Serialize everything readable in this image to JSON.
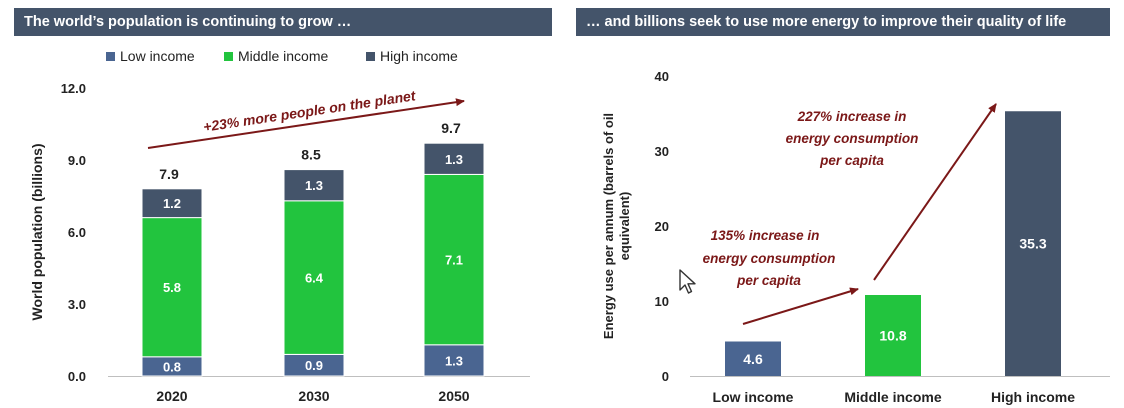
{
  "colors": {
    "low": "#4a6591",
    "middle": "#22c43e",
    "high": "#44546a",
    "annotation": "#7b1818",
    "header_bg": "#44546a"
  },
  "left": {
    "header": "The world’s population is continuing to grow …",
    "chart_data": {
      "type": "bar",
      "stacked": true,
      "categories": [
        "2020",
        "2030",
        "2050"
      ],
      "series": [
        {
          "name": "Low income",
          "values": [
            0.8,
            0.9,
            1.3
          ]
        },
        {
          "name": "Middle income",
          "values": [
            5.8,
            6.4,
            7.1
          ]
        },
        {
          "name": "High income",
          "values": [
            1.2,
            1.3,
            1.3
          ]
        }
      ],
      "totals": [
        "7.9",
        "8.5",
        "9.7"
      ],
      "segment_labels": [
        [
          "0.8",
          "5.8",
          "1.2"
        ],
        [
          "0.9",
          "6.4",
          "1.3"
        ],
        [
          "1.3",
          "7.1",
          "1.3"
        ]
      ],
      "ylabel": "World population (billions)",
      "ylim": [
        0,
        12
      ],
      "yticks": [
        "0.0",
        "3.0",
        "6.0",
        "9.0",
        "12.0"
      ],
      "legend_position": "top",
      "grid": false,
      "annotation": "+23% more people on the planet"
    }
  },
  "right": {
    "header": "… and billions seek to use more energy to improve their quality of life",
    "chart_data": {
      "type": "bar",
      "categories": [
        "Low income",
        "Middle income",
        "High income"
      ],
      "values": [
        4.6,
        10.8,
        35.3
      ],
      "value_labels": [
        "4.6",
        "10.8",
        "35.3"
      ],
      "ylabel_lines": [
        "Energy use per annum (barrels of oil",
        "equivalent)"
      ],
      "ylim": [
        0,
        40
      ],
      "yticks": [
        "0",
        "10",
        "20",
        "30",
        "40"
      ],
      "grid": false,
      "annotations": [
        {
          "lines": [
            "135% increase in",
            "energy consumption",
            "per capita"
          ]
        },
        {
          "lines": [
            "227% increase in",
            "energy consumption",
            "per capita"
          ]
        }
      ]
    }
  }
}
